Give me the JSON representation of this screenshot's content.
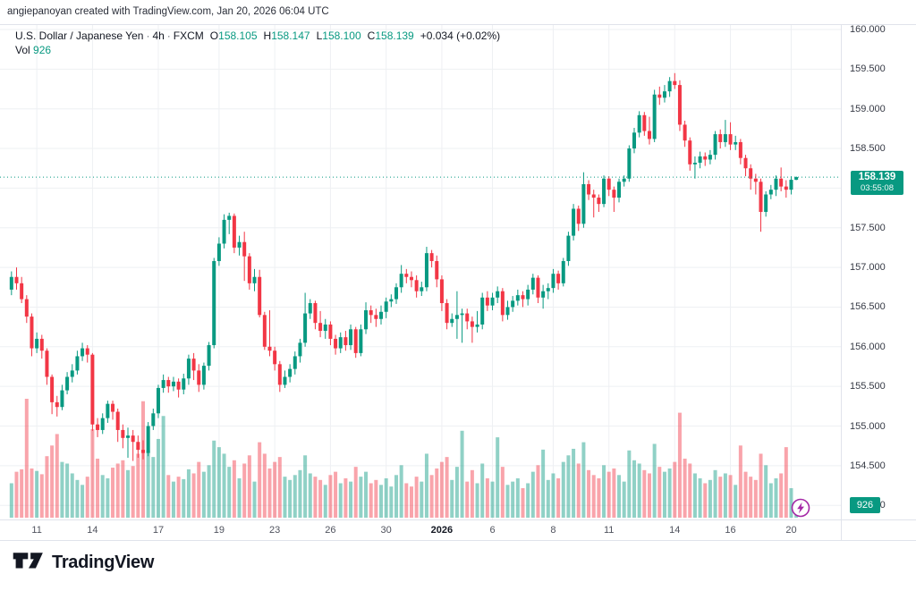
{
  "attribution": {
    "text": "angiepanoyan created with TradingView.com, Jan 20, 2026 06:04 UTC"
  },
  "legend": {
    "symbol": "U.S. Dollar / Japanese Yen",
    "separator": "·",
    "interval": "4h",
    "exchange": "FXCM",
    "o_label": "O",
    "o_value": "158.105",
    "h_label": "H",
    "h_value": "158.147",
    "l_label": "L",
    "l_value": "158.100",
    "c_label": "C",
    "c_value": "158.139",
    "change": "+0.034 (+0.02%)",
    "vol_label": "Vol",
    "vol_value": "926"
  },
  "last_price": {
    "value": "158.139",
    "countdown": "03:55:08"
  },
  "volume_tag": "926",
  "footer": {
    "logo_text": "TradingView"
  },
  "chart_data": {
    "type": "candlestick+volume",
    "title": "U.S. Dollar / Japanese Yen · 4h · FXCM",
    "price_range": [
      154.0,
      160.0
    ],
    "grid_prices": [
      154.0,
      154.5,
      155.0,
      155.5,
      156.0,
      156.5,
      157.0,
      157.5,
      158.0,
      158.5,
      159.0,
      159.5,
      160.0
    ],
    "price_labels": [
      {
        "text": "160.000",
        "value": 160.0
      },
      {
        "text": "159.500",
        "value": 159.5
      },
      {
        "text": "159.000",
        "value": 159.0
      },
      {
        "text": "158.500",
        "value": 158.5
      },
      {
        "text": "157.500",
        "value": 157.5
      },
      {
        "text": "157.000",
        "value": 157.0
      },
      {
        "text": "156.500",
        "value": 156.5
      },
      {
        "text": "156.000",
        "value": 156.0
      },
      {
        "text": "155.500",
        "value": 155.5
      },
      {
        "text": "155.000",
        "value": 155.0
      },
      {
        "text": "154.500",
        "value": 154.5
      },
      {
        "text": "154.000",
        "value": 154.0
      }
    ],
    "time_ticks": [
      {
        "label": "11",
        "index": 5,
        "bold": false
      },
      {
        "label": "14",
        "index": 16,
        "bold": false
      },
      {
        "label": "17",
        "index": 29,
        "bold": false
      },
      {
        "label": "19",
        "index": 41,
        "bold": false
      },
      {
        "label": "23",
        "index": 52,
        "bold": false
      },
      {
        "label": "26",
        "index": 63,
        "bold": false
      },
      {
        "label": "30",
        "index": 74,
        "bold": false
      },
      {
        "label": "2026",
        "index": 85,
        "bold": true
      },
      {
        "label": "6",
        "index": 95,
        "bold": false
      },
      {
        "label": "8",
        "index": 107,
        "bold": false
      },
      {
        "label": "11",
        "index": 118,
        "bold": false
      },
      {
        "label": "14",
        "index": 131,
        "bold": false
      },
      {
        "label": "16",
        "index": 142,
        "bold": false
      },
      {
        "label": "20",
        "index": 154,
        "bold": false
      }
    ],
    "volume_scale_max": 14500,
    "last_price_value": 158.139,
    "colors": {
      "up": "#089981",
      "down": "#F23645",
      "vol_up": "rgba(8,153,129,0.45)",
      "vol_down": "rgba(242,54,69,0.45)",
      "tag_bg": "#089981"
    },
    "candles": [
      [
        156.72,
        156.95,
        156.65,
        156.88,
        4200
      ],
      [
        156.88,
        157.0,
        156.72,
        156.8,
        5600
      ],
      [
        156.8,
        156.88,
        156.55,
        156.6,
        5900
      ],
      [
        156.6,
        156.65,
        156.3,
        156.38,
        14500
      ],
      [
        156.38,
        156.42,
        155.88,
        155.98,
        6000
      ],
      [
        155.98,
        156.18,
        155.92,
        156.1,
        5700
      ],
      [
        156.1,
        156.15,
        155.85,
        155.95,
        5300
      ],
      [
        155.95,
        155.98,
        155.52,
        155.62,
        7500
      ],
      [
        155.62,
        155.65,
        155.15,
        155.3,
        8800
      ],
      [
        155.3,
        155.38,
        155.12,
        155.24,
        10200
      ],
      [
        155.24,
        155.52,
        155.2,
        155.45,
        6800
      ],
      [
        155.45,
        155.68,
        155.4,
        155.62,
        6600
      ],
      [
        155.62,
        155.78,
        155.55,
        155.7,
        5400
      ],
      [
        155.7,
        155.95,
        155.65,
        155.88,
        4600
      ],
      [
        155.88,
        156.05,
        155.82,
        155.98,
        4000
      ],
      [
        155.98,
        156.02,
        155.8,
        155.9,
        5000
      ],
      [
        155.9,
        155.92,
        154.94,
        155.02,
        10800
      ],
      [
        155.02,
        155.1,
        154.86,
        154.95,
        7200
      ],
      [
        154.95,
        155.16,
        154.9,
        155.1,
        5200
      ],
      [
        155.1,
        155.32,
        155.04,
        155.28,
        4800
      ],
      [
        155.28,
        155.32,
        155.08,
        155.18,
        6100
      ],
      [
        155.18,
        155.22,
        154.8,
        154.95,
        6600
      ],
      [
        154.95,
        155.02,
        154.72,
        154.85,
        7000
      ],
      [
        154.85,
        154.98,
        154.6,
        154.88,
        5800
      ],
      [
        154.88,
        154.95,
        154.56,
        154.8,
        6300
      ],
      [
        154.8,
        154.88,
        154.6,
        154.7,
        7800
      ],
      [
        154.7,
        154.82,
        154.58,
        154.66,
        14200
      ],
      [
        154.66,
        155.05,
        154.62,
        155.0,
        8200
      ],
      [
        155.0,
        155.22,
        154.95,
        155.16,
        7400
      ],
      [
        155.16,
        155.52,
        155.1,
        155.48,
        9600
      ],
      [
        155.48,
        155.65,
        155.42,
        155.58,
        12400
      ],
      [
        155.58,
        155.62,
        155.42,
        155.5,
        5200
      ],
      [
        155.5,
        155.62,
        155.44,
        155.56,
        4400
      ],
      [
        155.56,
        155.6,
        155.36,
        155.46,
        5000
      ],
      [
        155.46,
        155.66,
        155.4,
        155.6,
        4700
      ],
      [
        155.6,
        155.9,
        155.52,
        155.85,
        5900
      ],
      [
        155.85,
        155.92,
        155.58,
        155.7,
        5400
      ],
      [
        155.7,
        155.78,
        155.43,
        155.52,
        6800
      ],
      [
        155.52,
        155.8,
        155.46,
        155.76,
        5600
      ],
      [
        155.76,
        156.06,
        155.7,
        156.02,
        6400
      ],
      [
        156.02,
        157.12,
        155.98,
        157.08,
        9400
      ],
      [
        157.08,
        157.38,
        157.02,
        157.3,
        8600
      ],
      [
        157.3,
        157.67,
        157.24,
        157.6,
        7800
      ],
      [
        157.6,
        157.69,
        157.42,
        157.65,
        6200
      ],
      [
        157.65,
        157.68,
        157.18,
        157.25,
        7000
      ],
      [
        157.25,
        157.4,
        157.15,
        157.32,
        4800
      ],
      [
        157.32,
        157.45,
        156.83,
        157.14,
        6600
      ],
      [
        157.14,
        157.18,
        156.72,
        156.8,
        7600
      ],
      [
        156.8,
        156.98,
        156.7,
        156.88,
        4400
      ],
      [
        156.88,
        156.97,
        156.37,
        156.4,
        9200
      ],
      [
        156.4,
        156.44,
        155.96,
        156.0,
        7800
      ],
      [
        156.0,
        156.46,
        155.88,
        155.95,
        6000
      ],
      [
        155.95,
        156.0,
        155.7,
        155.78,
        6800
      ],
      [
        155.78,
        155.82,
        155.43,
        155.52,
        7400
      ],
      [
        155.52,
        155.7,
        155.48,
        155.62,
        5000
      ],
      [
        155.62,
        155.78,
        155.55,
        155.72,
        4600
      ],
      [
        155.72,
        155.94,
        155.65,
        155.88,
        5200
      ],
      [
        155.88,
        156.1,
        155.8,
        156.05,
        5800
      ],
      [
        156.05,
        156.68,
        156.0,
        156.42,
        7600
      ],
      [
        156.42,
        156.6,
        156.35,
        156.55,
        5400
      ],
      [
        156.55,
        156.58,
        156.22,
        156.3,
        5000
      ],
      [
        156.3,
        156.45,
        156.12,
        156.2,
        4600
      ],
      [
        156.2,
        156.35,
        156.1,
        156.28,
        4000
      ],
      [
        156.28,
        156.32,
        156.02,
        156.1,
        5200
      ],
      [
        156.1,
        156.15,
        155.9,
        155.98,
        5600
      ],
      [
        155.98,
        156.18,
        155.92,
        156.12,
        4200
      ],
      [
        156.12,
        156.2,
        155.95,
        156.02,
        4800
      ],
      [
        156.02,
        156.28,
        155.96,
        156.22,
        4400
      ],
      [
        156.22,
        156.25,
        155.86,
        155.92,
        6200
      ],
      [
        155.92,
        156.28,
        155.88,
        156.22,
        5000
      ],
      [
        156.22,
        156.56,
        156.16,
        156.46,
        5600
      ],
      [
        156.46,
        156.52,
        156.3,
        156.4,
        4200
      ],
      [
        156.4,
        156.48,
        156.25,
        156.35,
        4600
      ],
      [
        156.35,
        156.52,
        156.28,
        156.44,
        4000
      ],
      [
        156.44,
        156.62,
        156.36,
        156.57,
        4800
      ],
      [
        156.57,
        156.66,
        156.5,
        156.6,
        3800
      ],
      [
        156.6,
        156.8,
        156.54,
        156.75,
        5200
      ],
      [
        156.75,
        157.03,
        156.68,
        156.92,
        6400
      ],
      [
        156.92,
        156.98,
        156.8,
        156.88,
        4200
      ],
      [
        156.88,
        156.95,
        156.75,
        156.84,
        3800
      ],
      [
        156.84,
        156.9,
        156.62,
        156.7,
        5000
      ],
      [
        156.7,
        156.82,
        156.64,
        156.75,
        4400
      ],
      [
        156.75,
        157.26,
        156.7,
        157.18,
        7800
      ],
      [
        157.18,
        157.22,
        157.0,
        157.08,
        5200
      ],
      [
        157.08,
        157.15,
        156.75,
        156.85,
        6000
      ],
      [
        156.85,
        156.9,
        156.45,
        156.55,
        6800
      ],
      [
        156.55,
        156.6,
        156.22,
        156.3,
        7400
      ],
      [
        156.3,
        156.42,
        156.25,
        156.35,
        4600
      ],
      [
        156.35,
        156.7,
        156.1,
        156.4,
        6200
      ],
      [
        156.4,
        156.48,
        156.05,
        156.42,
        10600
      ],
      [
        156.42,
        156.48,
        156.22,
        156.32,
        4400
      ],
      [
        156.32,
        156.38,
        156.05,
        156.25,
        5800
      ],
      [
        156.25,
        156.45,
        156.18,
        156.28,
        4200
      ],
      [
        156.28,
        156.68,
        156.22,
        156.62,
        6600
      ],
      [
        156.62,
        156.7,
        156.45,
        156.52,
        4800
      ],
      [
        156.52,
        156.68,
        156.46,
        156.62,
        4400
      ],
      [
        156.62,
        156.76,
        156.55,
        156.7,
        9800
      ],
      [
        156.7,
        156.74,
        156.32,
        156.4,
        6200
      ],
      [
        156.4,
        156.58,
        156.34,
        156.5,
        4000
      ],
      [
        156.5,
        156.64,
        156.44,
        156.58,
        4400
      ],
      [
        156.58,
        156.72,
        156.52,
        156.65,
        4800
      ],
      [
        156.65,
        156.7,
        156.5,
        156.6,
        3600
      ],
      [
        156.6,
        156.78,
        156.52,
        156.72,
        4200
      ],
      [
        156.72,
        156.92,
        156.66,
        156.87,
        5600
      ],
      [
        156.87,
        156.9,
        156.55,
        156.62,
        6400
      ],
      [
        156.62,
        156.78,
        156.48,
        156.7,
        8300
      ],
      [
        156.7,
        156.8,
        156.6,
        156.74,
        4600
      ],
      [
        156.74,
        156.98,
        156.68,
        156.92,
        5400
      ],
      [
        156.92,
        156.96,
        156.72,
        156.8,
        4800
      ],
      [
        156.8,
        157.12,
        156.76,
        157.08,
        6800
      ],
      [
        157.08,
        157.45,
        157.02,
        157.4,
        7600
      ],
      [
        157.4,
        157.8,
        157.34,
        157.74,
        8400
      ],
      [
        157.74,
        157.78,
        157.46,
        157.55,
        6600
      ],
      [
        157.55,
        158.2,
        157.5,
        158.05,
        9200
      ],
      [
        158.05,
        158.1,
        157.85,
        157.92,
        5800
      ],
      [
        157.92,
        157.98,
        157.63,
        157.88,
        5200
      ],
      [
        157.88,
        157.92,
        157.7,
        157.8,
        4800
      ],
      [
        157.8,
        158.16,
        157.76,
        158.12,
        6400
      ],
      [
        158.12,
        158.15,
        157.9,
        157.98,
        5600
      ],
      [
        157.98,
        158.02,
        157.7,
        157.88,
        6000
      ],
      [
        157.88,
        158.12,
        157.82,
        158.08,
        5200
      ],
      [
        158.08,
        158.16,
        158.02,
        158.12,
        4400
      ],
      [
        158.12,
        158.54,
        158.08,
        158.5,
        8200
      ],
      [
        158.5,
        158.76,
        158.44,
        158.7,
        7000
      ],
      [
        158.7,
        158.97,
        158.64,
        158.92,
        6600
      ],
      [
        158.92,
        158.96,
        158.66,
        158.72,
        5800
      ],
      [
        158.72,
        158.9,
        158.55,
        158.62,
        5400
      ],
      [
        158.62,
        159.24,
        158.58,
        159.18,
        9000
      ],
      [
        159.18,
        159.28,
        159.05,
        159.14,
        6200
      ],
      [
        159.14,
        159.3,
        159.08,
        159.22,
        5600
      ],
      [
        159.22,
        159.4,
        159.15,
        159.35,
        6000
      ],
      [
        159.35,
        159.45,
        159.25,
        159.3,
        6800
      ],
      [
        159.3,
        159.36,
        158.72,
        158.8,
        12800
      ],
      [
        158.8,
        158.85,
        158.52,
        158.6,
        7200
      ],
      [
        158.6,
        158.64,
        158.22,
        158.3,
        6600
      ],
      [
        158.3,
        158.4,
        158.12,
        158.32,
        5400
      ],
      [
        158.32,
        158.46,
        158.25,
        158.4,
        4800
      ],
      [
        158.4,
        158.45,
        158.28,
        158.36,
        4200
      ],
      [
        158.36,
        158.48,
        158.3,
        158.42,
        4600
      ],
      [
        158.42,
        158.72,
        158.36,
        158.68,
        5800
      ],
      [
        158.68,
        158.74,
        158.5,
        158.58,
        5000
      ],
      [
        158.58,
        158.86,
        158.52,
        158.68,
        5400
      ],
      [
        158.68,
        158.83,
        158.48,
        158.55,
        5200
      ],
      [
        158.55,
        158.66,
        158.48,
        158.58,
        4000
      ],
      [
        158.58,
        158.62,
        158.3,
        158.38,
        8800
      ],
      [
        158.38,
        158.42,
        158.15,
        158.25,
        5600
      ],
      [
        158.25,
        158.3,
        157.98,
        158.12,
        5000
      ],
      [
        158.12,
        158.18,
        157.92,
        158.08,
        4600
      ],
      [
        158.08,
        158.12,
        157.45,
        157.7,
        7800
      ],
      [
        157.7,
        157.96,
        157.64,
        157.92,
        6400
      ],
      [
        157.92,
        158.04,
        157.86,
        157.98,
        4200
      ],
      [
        157.98,
        158.16,
        157.9,
        158.12,
        4800
      ],
      [
        158.12,
        158.26,
        157.96,
        158.02,
        5400
      ],
      [
        158.02,
        158.1,
        157.88,
        157.98,
        8600
      ],
      [
        157.98,
        158.15,
        157.92,
        158.105,
        3600
      ],
      [
        158.105,
        158.147,
        158.1,
        158.139,
        926
      ]
    ]
  }
}
